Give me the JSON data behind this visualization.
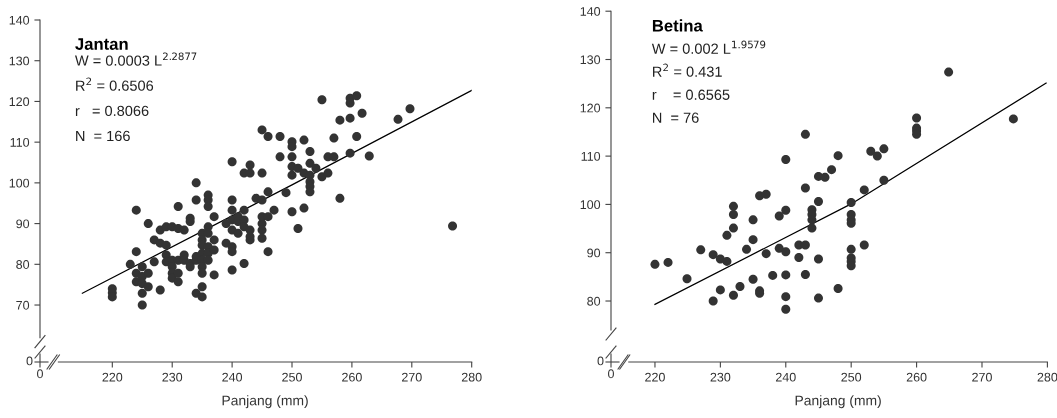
{
  "chart_data": [
    {
      "type": "scatter",
      "title": "Jantan",
      "xlabel": "Panjang (mm)",
      "annotations": [
        "W = 0.0003 L$^{2.2877}$",
        "R$^{2}$ = 0.6506",
        "r   = 0.8066",
        "N  = 166",
        "0",
        "0"
      ],
      "xlim": [
        211,
        280
      ],
      "xticks": [
        220,
        230,
        240,
        250,
        260,
        270,
        280
      ],
      "ylim": [
        62,
        140
      ],
      "yticks": [
        70,
        80,
        90,
        100,
        110,
        120,
        130,
        140
      ],
      "grid": false,
      "legend": false,
      "series": [
        {
          "marker": "circle",
          "color": "#333333",
          "x": [
            220,
            220,
            220,
            223,
            224,
            224,
            224,
            224,
            225,
            225,
            225,
            225,
            225,
            226,
            226,
            226,
            227,
            227,
            228,
            228,
            228,
            229,
            229,
            229,
            229,
            230,
            230,
            230,
            230,
            230,
            231,
            231,
            231,
            231,
            231,
            232,
            232,
            232,
            233,
            233,
            233,
            233,
            234,
            234,
            234,
            234,
            234,
            235,
            235,
            235,
            235,
            235,
            235,
            235,
            235,
            235,
            236,
            236,
            236,
            236,
            236,
            236,
            236,
            236,
            237,
            237,
            237,
            237,
            239,
            239,
            240,
            240,
            240,
            240,
            240,
            240,
            240,
            240,
            241,
            241,
            241,
            242,
            242,
            242,
            242,
            242,
            243,
            243,
            243,
            243,
            243,
            244,
            245,
            245,
            245,
            245,
            245,
            245,
            245,
            246,
            246,
            246,
            246,
            247,
            248,
            248,
            249,
            250,
            250,
            250,
            250,
            250,
            250,
            251,
            251,
            252,
            252,
            252,
            253,
            253,
            253,
            253,
            253,
            253,
            254,
            255,
            255,
            256,
            256,
            257,
            257,
            258,
            258,
            259.7,
            259.7,
            259.7,
            259.7,
            260.8,
            260.8,
            261.7,
            262.9,
            267.7,
            269.7,
            276.8
          ],
          "values": [
            74,
            73,
            72,
            80,
            93.3,
            83.1,
            77.8,
            75.7,
            79.4,
            77,
            72.9,
            70,
            75.3,
            90,
            77.8,
            74.5,
            86,
            80.6,
            88.4,
            85.2,
            73.7,
            89.2,
            84.7,
            82.3,
            80.6,
            89.2,
            81,
            79.4,
            77.8,
            76.6,
            94.2,
            88.8,
            81,
            77.8,
            75.7,
            88.4,
            82.3,
            81,
            91.3,
            90.5,
            80.2,
            79.4,
            100,
            95.8,
            72.9,
            81,
            81.9,
            87.6,
            86,
            84.7,
            82.7,
            81,
            79.4,
            77.8,
            74.5,
            72,
            97,
            95.8,
            94.2,
            89.2,
            87.6,
            84.3,
            82.7,
            81,
            91.7,
            86,
            83.5,
            77.4,
            85.2,
            90,
            105.2,
            95.8,
            93.3,
            90.9,
            88.4,
            84.3,
            83.1,
            78.6,
            91.7,
            90.5,
            87.6,
            102.4,
            93.3,
            90.9,
            80.2,
            89.2,
            104.4,
            102.4,
            88.4,
            86,
            86.8,
            96.2,
            113,
            102.4,
            95.8,
            91.7,
            90,
            88.4,
            86.4,
            111.4,
            97.8,
            91.7,
            83.1,
            93.3,
            111.4,
            106.4,
            97.6,
            110.1,
            108.9,
            106.4,
            104,
            101.9,
            92.9,
            103.6,
            88.8,
            110.5,
            102.4,
            93.8,
            107.7,
            104.8,
            101.9,
            100.3,
            99.1,
            97.8,
            103.6,
            120.4,
            101.5,
            106.4,
            102.4,
            111,
            106.4,
            115.4,
            96.2,
            120.8,
            119.6,
            115.9,
            107.3,
            121.4,
            111.4,
            117.1,
            106.6,
            115.6,
            118.2,
            89.4
          ]
        },
        {
          "type": "line",
          "marker": "none",
          "color": "#000000",
          "x": [
            215,
            250,
            280
          ],
          "values": [
            72.9,
            99.5,
            122.7
          ]
        }
      ]
    },
    {
      "type": "scatter",
      "title": "Betina",
      "xlabel": "Panjang (mm)",
      "annotations": [
        "W = 0.002 L$^{1.9579}$",
        "R$^{2}$ = 0.431",
        "r    = 0.6565",
        "N  = 76",
        "0",
        "0"
      ],
      "xlim": [
        216,
        280
      ],
      "xticks": [
        220,
        230,
        240,
        250,
        260,
        270,
        280
      ],
      "ylim": [
        74,
        140
      ],
      "yticks": [
        80,
        90,
        100,
        110,
        120,
        130,
        140
      ],
      "grid": false,
      "legend": false,
      "series": [
        {
          "marker": "circle",
          "color": "#333333",
          "x": [
            220,
            222,
            224.9,
            227,
            228.9,
            228.9,
            230,
            230,
            231,
            231,
            232,
            232,
            232,
            232,
            233,
            234,
            235,
            235,
            235,
            236,
            236,
            236,
            237,
            237,
            238,
            239,
            239,
            240,
            240,
            240,
            240,
            240,
            240,
            242,
            242,
            243,
            243,
            243,
            243,
            244,
            244,
            244,
            244,
            245,
            245,
            245,
            245,
            246,
            247,
            248,
            248,
            250,
            250,
            250,
            250,
            250,
            250,
            250,
            250,
            252,
            252,
            253,
            254,
            255,
            255,
            260,
            260,
            260,
            260,
            264.9,
            274.8
          ],
          "values": [
            87.6,
            88,
            84.6,
            90.6,
            89.6,
            80,
            88.7,
            82.3,
            88.2,
            93.6,
            99.6,
            97.9,
            95.1,
            81.2,
            83,
            90.7,
            96.8,
            92.7,
            84.5,
            101.8,
            82.1,
            81.6,
            102.1,
            89.8,
            85.3,
            97.6,
            90.9,
            109.3,
            98.8,
            90.2,
            85.4,
            80.9,
            78.3,
            91.6,
            89,
            114.5,
            103.4,
            91.6,
            85.5,
            98.9,
            97.9,
            96.8,
            95.1,
            105.8,
            100.6,
            88.7,
            80.6,
            105.6,
            107.2,
            110.1,
            82.6,
            100.4,
            97.9,
            96.8,
            96.1,
            90.7,
            88.9,
            88.2,
            87.3,
            103,
            91.6,
            111,
            110,
            111.5,
            105,
            117.9,
            115.8,
            115.2,
            114.5,
            127.4,
            117.7
          ]
        },
        {
          "type": "line",
          "marker": "none",
          "color": "#000000",
          "x": [
            220,
            250,
            279.8
          ],
          "values": [
            79.3,
            100.1,
            125.1
          ]
        }
      ]
    }
  ]
}
